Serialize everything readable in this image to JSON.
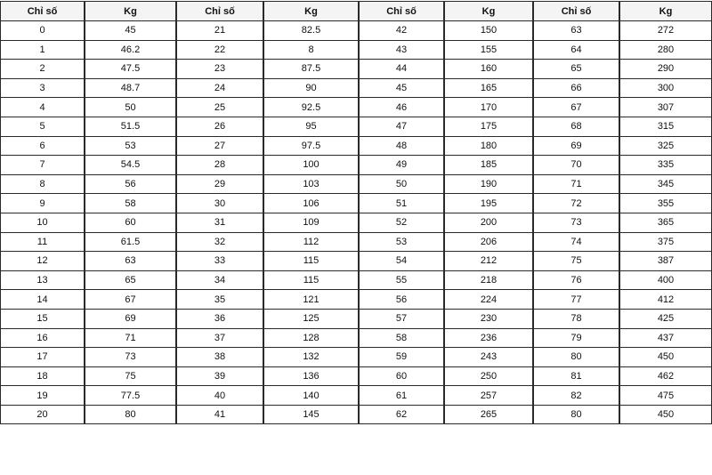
{
  "headers": [
    "Chỉ số",
    "Kg",
    "Chỉ số",
    "Kg",
    "Chỉ số",
    "Kg",
    "Chỉ số",
    "Kg"
  ],
  "rows": [
    [
      "0",
      "45",
      "21",
      "82.5",
      "42",
      "150",
      "63",
      "272"
    ],
    [
      "1",
      "46.2",
      "22",
      "8",
      "43",
      "155",
      "64",
      "280"
    ],
    [
      "2",
      "47.5",
      "23",
      "87.5",
      "44",
      "160",
      "65",
      "290"
    ],
    [
      "3",
      "48.7",
      "24",
      "90",
      "45",
      "165",
      "66",
      "300"
    ],
    [
      "4",
      "50",
      "25",
      "92.5",
      "46",
      "170",
      "67",
      "307"
    ],
    [
      "5",
      "51.5",
      "26",
      "95",
      "47",
      "175",
      "68",
      "315"
    ],
    [
      "6",
      "53",
      "27",
      "97.5",
      "48",
      "180",
      "69",
      "325"
    ],
    [
      "7",
      "54.5",
      "28",
      "100",
      "49",
      "185",
      "70",
      "335"
    ],
    [
      "8",
      "56",
      "29",
      "103",
      "50",
      "190",
      "71",
      "345"
    ],
    [
      "9",
      "58",
      "30",
      "106",
      "51",
      "195",
      "72",
      "355"
    ],
    [
      "10",
      "60",
      "31",
      "109",
      "52",
      "200",
      "73",
      "365"
    ],
    [
      "11",
      "61.5",
      "32",
      "112",
      "53",
      "206",
      "74",
      "375"
    ],
    [
      "12",
      "63",
      "33",
      "115",
      "54",
      "212",
      "75",
      "387"
    ],
    [
      "13",
      "65",
      "34",
      "115",
      "55",
      "218",
      "76",
      "400"
    ],
    [
      "14",
      "67",
      "35",
      "121",
      "56",
      "224",
      "77",
      "412"
    ],
    [
      "15",
      "69",
      "36",
      "125",
      "57",
      "230",
      "78",
      "425"
    ],
    [
      "16",
      "71",
      "37",
      "128",
      "58",
      "236",
      "79",
      "437"
    ],
    [
      "17",
      "73",
      "38",
      "132",
      "59",
      "243",
      "80",
      "450"
    ],
    [
      "18",
      "75",
      "39",
      "136",
      "60",
      "250",
      "81",
      "462"
    ],
    [
      "19",
      "77.5",
      "40",
      "140",
      "61",
      "257",
      "82",
      "475"
    ],
    [
      "20",
      "80",
      "41",
      "145",
      "62",
      "265",
      "80",
      "450"
    ]
  ]
}
